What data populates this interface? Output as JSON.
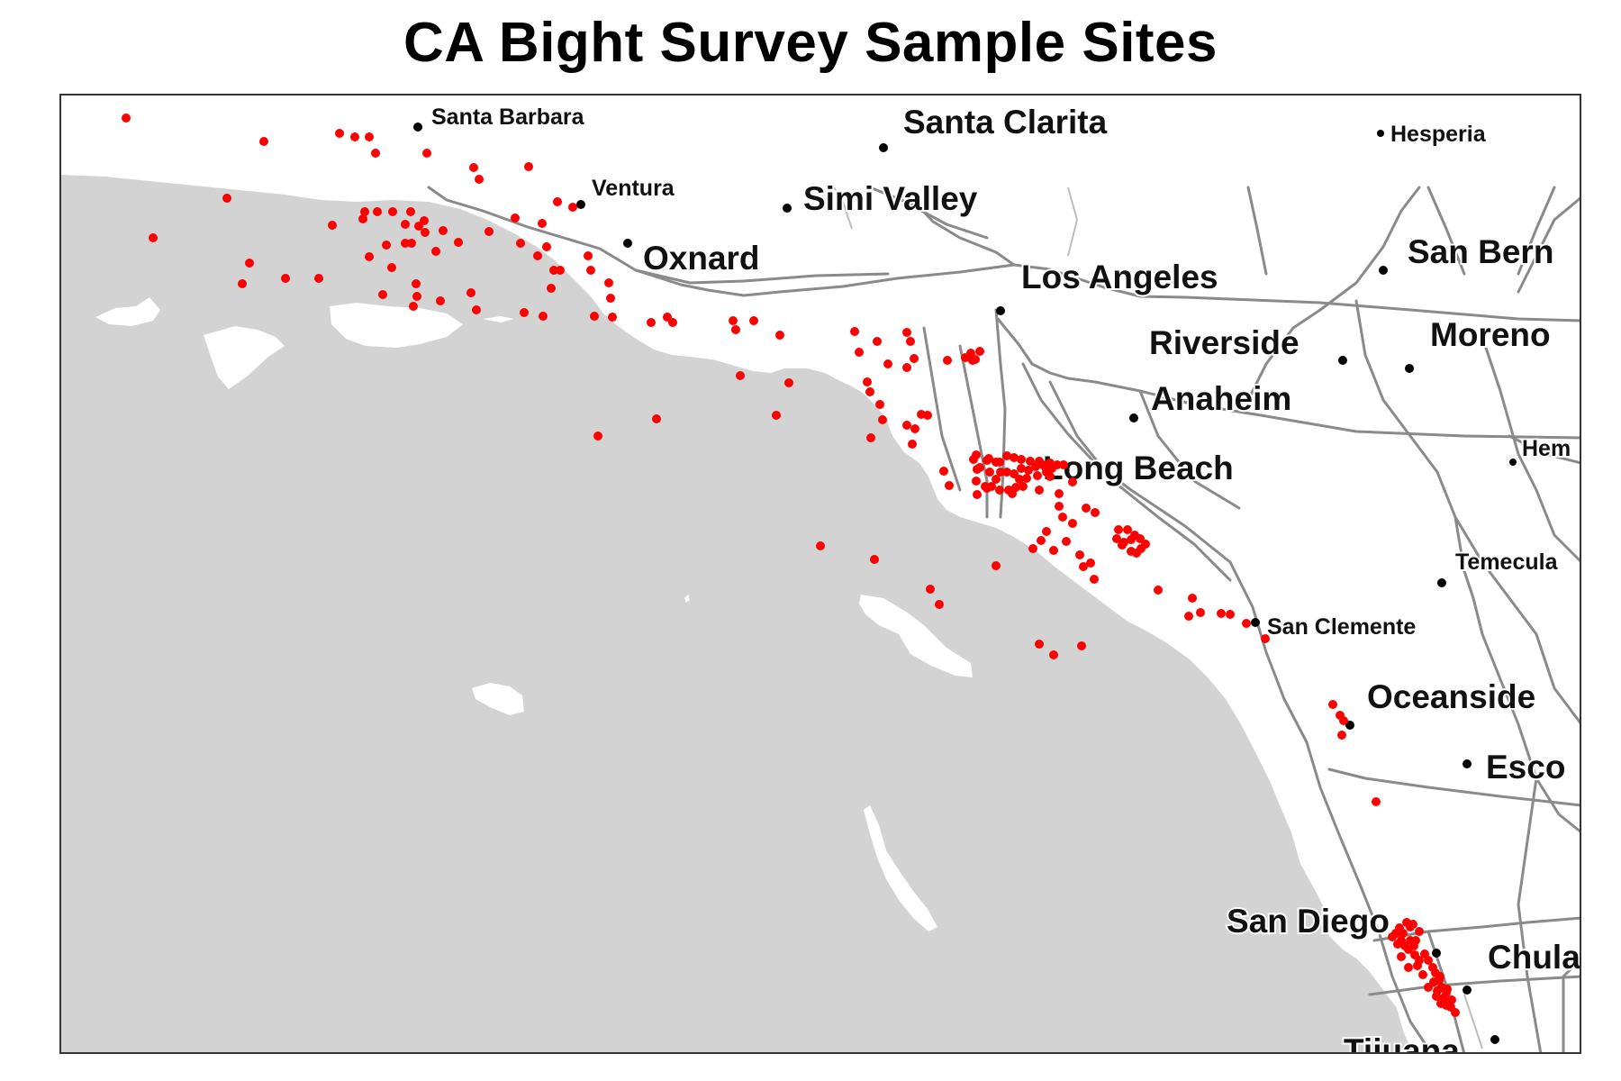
{
  "title": "CA Bight Survey Sample Sites",
  "colors": {
    "land": "#ffffff",
    "ocean": "#d3d3d3",
    "site_marker": "#ff0000",
    "city_dot": "#000000",
    "frame": "#333333"
  },
  "cities": [
    {
      "name": "Santa Barbara",
      "size": "small"
    },
    {
      "name": "Santa Clarita",
      "size": "large"
    },
    {
      "name": "Hesperia",
      "size": "small"
    },
    {
      "name": "Ventura",
      "size": "small"
    },
    {
      "name": "Simi Valley",
      "size": "large"
    },
    {
      "name": "Oxnard",
      "size": "large"
    },
    {
      "name": "San Bern",
      "size": "large"
    },
    {
      "name": "Los Angeles",
      "size": "large"
    },
    {
      "name": "Riverside",
      "size": "large"
    },
    {
      "name": "Moreno",
      "size": "large"
    },
    {
      "name": "Anaheim",
      "size": "large"
    },
    {
      "name": "Hem",
      "size": "small"
    },
    {
      "name": "Long Beach",
      "size": "large"
    },
    {
      "name": "Temecula",
      "size": "small"
    },
    {
      "name": "San Clemente",
      "size": "small"
    },
    {
      "name": "Oceanside",
      "size": "large"
    },
    {
      "name": "Esco",
      "size": "large"
    },
    {
      "name": "San Diego",
      "size": "large"
    },
    {
      "name": "Chula",
      "size": "large"
    },
    {
      "name": "Tijuana",
      "size": "large"
    }
  ],
  "sample_site_count": 230
}
